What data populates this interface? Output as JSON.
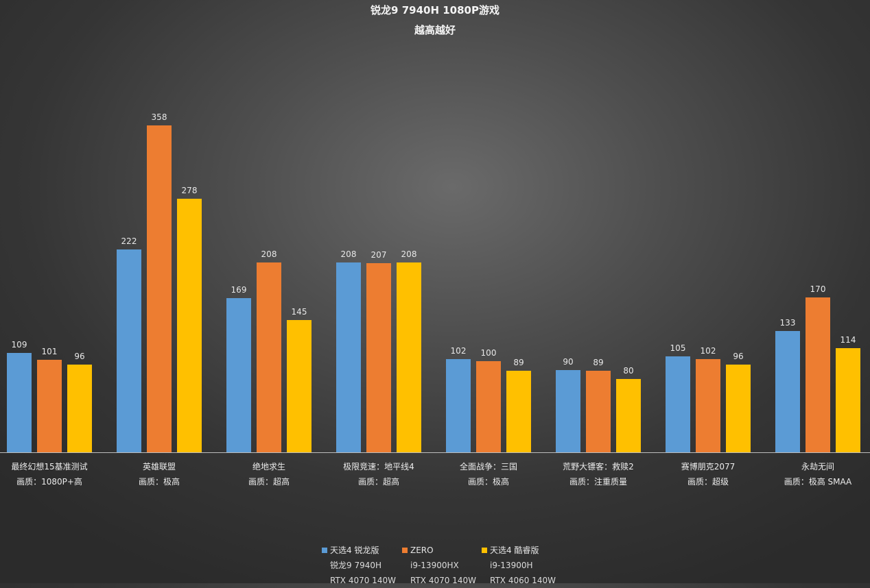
{
  "chart_data": {
    "type": "bar",
    "title": "锐龙9  7940H  1080P游戏",
    "subtitle": "越高越好",
    "xlabel": "",
    "ylabel": "",
    "ylim": [
      0,
      400
    ],
    "grid": false,
    "legend_position": "bottom",
    "categories": [
      {
        "name": "最终幻想15基准测试",
        "quality": "画质：1080P+高"
      },
      {
        "name": "英雄联盟",
        "quality": "画质：极高"
      },
      {
        "name": "绝地求生",
        "quality": "画质：超高"
      },
      {
        "name": "极限竞速：地平线4",
        "quality": "画质：超高"
      },
      {
        "name": "全面战争：三国",
        "quality": "画质：极高"
      },
      {
        "name": "荒野大镖客：救赎2",
        "quality": "画质：注重质量"
      },
      {
        "name": "赛博朋克2077",
        "quality": "画质：超级"
      },
      {
        "name": "永劫无间",
        "quality": "画质：极高 SMAA"
      }
    ],
    "series": [
      {
        "name": "天选4 锐龙版",
        "cpu": "锐龙9 7940H",
        "gpu": "RTX 4070 140W",
        "color": "#5b9bd5",
        "values": [
          109,
          222,
          169,
          208,
          102,
          90,
          105,
          133
        ]
      },
      {
        "name": "ZERO",
        "cpu": "i9-13900HX",
        "gpu": "RTX 4070 140W",
        "color": "#ed7d31",
        "values": [
          101,
          358,
          208,
          207,
          100,
          89,
          102,
          170
        ]
      },
      {
        "name": "天选4 酷睿版",
        "cpu": "i9-13900H",
        "gpu": "RTX 4060 140W",
        "color": "#ffc000",
        "values": [
          96,
          278,
          145,
          208,
          89,
          80,
          96,
          114
        ]
      }
    ]
  }
}
